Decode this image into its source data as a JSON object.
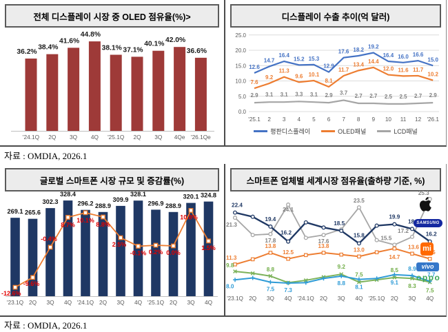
{
  "sources": [
    "자료 : OMDIA,  2026.1",
    "자료 : OMDIA,  2026.1"
  ],
  "logos": {
    "samsung": "SAMSUNG",
    "mi": "mi",
    "vivo": "vivo",
    "oppo": "oppo"
  },
  "chart_data": [
    {
      "type": "bar",
      "title": "전체 디스플레이 시장 중 OLED 점유율(%)>",
      "source": "자료 : OMDIA,  2026.1",
      "categories": [
        "'24.1Q",
        "2Q",
        "3Q",
        "4Q",
        "'25.1Q",
        "2Q",
        "3Q",
        "4Qe",
        "'26.1Qe"
      ],
      "values": [
        36.2,
        38.4,
        41.6,
        44.8,
        38.1,
        37.1,
        40.1,
        42.0,
        36.6
      ],
      "value_labels": [
        "36.2%",
        "38.4%",
        "41.6%",
        "44.8%",
        "38.1%",
        "37.1%",
        "40.1%",
        "42.0%",
        "36.6%"
      ],
      "bar_color": "#9e3a38",
      "ylim": [
        0,
        50
      ],
      "grid": false
    },
    {
      "type": "line",
      "title": "디스플레이 수출 추이(억 달러)",
      "x": [
        "'25.1",
        "2",
        "3",
        "4",
        "5",
        "6",
        "7",
        "8",
        "9",
        "10",
        "11",
        "12",
        "'26.1"
      ],
      "ylim": [
        0,
        25
      ],
      "grid": true,
      "legend_position": "bottom",
      "yticks": [
        {
          "v": 25,
          "t": "25.0"
        },
        {
          "v": 20,
          "t": "20.0"
        },
        {
          "v": 15,
          "t": "15.0"
        },
        {
          "v": 10,
          "t": "10.0"
        },
        {
          "v": 5,
          "t": "5.0"
        },
        {
          "v": 0,
          "t": "0.0"
        }
      ],
      "series": [
        {
          "name": "평판디스플레이",
          "color": "#4472c4",
          "label_dy": 6,
          "values": [
            12.6,
            14.7,
            16.4,
            15.2,
            15.3,
            12.9,
            17.6,
            18.2,
            19.2,
            16.4,
            16.0,
            16.6,
            15.0
          ],
          "labels": [
            "12.6",
            "14.7",
            "16.4",
            "15.2",
            "15.3",
            "12.9",
            "17.6",
            "18.2",
            "19.2",
            "16.4",
            "16.0",
            "16.6",
            "15.0"
          ]
        },
        {
          "name": "OLED패널",
          "color": "#ed7d31",
          "label_dy": 6,
          "values": [
            7.6,
            9.2,
            11.3,
            9.6,
            10.1,
            8.1,
            11.7,
            13.4,
            14.4,
            12.0,
            11.6,
            11.7,
            10.2
          ],
          "labels": [
            "7.6",
            "9.2",
            "11.3",
            "9.6",
            "10.1",
            "8.1",
            "11.7",
            "13.4",
            "14.4",
            "12.0",
            "11.6",
            "11.7",
            "10.2"
          ]
        },
        {
          "name": "LCD패널",
          "color": "#a5a5a5",
          "label_color": "#7f7f7f",
          "label_dy": 8,
          "values": [
            2.9,
            3.1,
            3.1,
            3.3,
            3.1,
            2.9,
            3.7,
            2.7,
            2.7,
            2.5,
            2.5,
            2.7,
            2.9
          ],
          "labels": [
            "2.9",
            "3.1",
            "3.1",
            "3.3",
            "3.1",
            "2.9",
            "3.7",
            "2.7",
            "2.7",
            "2.5",
            "2.5",
            "2.7",
            "2.9"
          ]
        }
      ]
    },
    {
      "type": "bar+line",
      "title": "글로벌 스마트폰 시장 규모 및 증감률(%)",
      "source": "자료 : OMDIA,  2026.1",
      "categories": [
        "'23.1Q",
        "2Q",
        "3Q",
        "4Q",
        "'24.1Q",
        "2Q",
        "3Q",
        "4Q",
        "'25.1Q",
        "2Q",
        "3Q",
        "4Q"
      ],
      "bars": {
        "color": "#1f3864",
        "values": [
          269.1,
          265.6,
          302.3,
          328.4,
          296.2,
          288.9,
          309.9,
          328.1,
          296.9,
          288.9,
          320.1,
          324.8
        ],
        "labels": [
          "269.1",
          "265.6",
          "302.3",
          "328.4",
          "296.2",
          "288.9",
          "309.9",
          "328.1",
          "296.9",
          "288.9",
          "320.1",
          "324.8"
        ]
      },
      "line": {
        "color": "#ed7d31",
        "label_color": "#e00000",
        "values": [
          -12.6,
          -9.6,
          -0.4,
          8.7,
          10.1,
          8.8,
          2.5,
          -0.1,
          0.2,
          0.0,
          10.8,
          1.5
        ],
        "labels": [
          "-12.6%",
          "-9.6%",
          "-0.4%",
          "8.7%",
          "10.1%",
          "8.8%",
          "2.5%",
          "-0.1%",
          "0.2%",
          "0.0%",
          "10.8%",
          "1.5%"
        ],
        "label_layout": [
          [
            -20,
            12,
            "start"
          ],
          [
            -2,
            12,
            "middle"
          ],
          [
            -2,
            -9,
            "middle"
          ],
          [
            0,
            14,
            "middle"
          ],
          [
            0,
            14,
            "middle"
          ],
          [
            0,
            14,
            "middle"
          ],
          [
            -2,
            13,
            "middle"
          ],
          [
            0,
            13,
            "middle"
          ],
          [
            0,
            13,
            "middle"
          ],
          [
            0,
            13,
            "middle"
          ],
          [
            -3,
            13,
            "middle"
          ],
          [
            0,
            13,
            "middle"
          ]
        ]
      }
    },
    {
      "type": "multi-line",
      "title": "스마트폰 업체별 세계시장 점유율(출하량 기준, %)",
      "categories": [
        "'23.1Q",
        "2Q",
        "3Q",
        "4Q",
        "'24.1Q",
        "2Q",
        "3Q",
        "4Q",
        "'25.1Q",
        "2Q",
        "3Q",
        "4Q"
      ],
      "brands": [
        "Apple",
        "SAMSUNG",
        "mi",
        "vivo",
        "oppo"
      ],
      "series": [
        {
          "name": "Apple",
          "color": "#a6a6a6",
          "label_color": "#808080",
          "marker": "circle",
          "width": 1.8,
          "values": [
            21.3,
            17.6,
            17.8,
            24.1,
            17.0,
            17.6,
            18.8,
            23.5,
            16.5,
            15.5,
            17.2,
            25.3
          ],
          "labels": [
            {
              "i": 0,
              "t": "21.3",
              "x": 1,
              "anchor": "start",
              "dy": 13
            },
            {
              "i": 2,
              "t": "17.8",
              "dy": 12
            },
            {
              "i": 3,
              "t": "24.1",
              "dy": 10
            },
            {
              "i": 5,
              "t": "17.6",
              "dy": 12
            },
            {
              "i": 7,
              "t": "23.5",
              "dy": -7
            },
            {
              "i": 9,
              "t": "15.5",
              "dx": -12,
              "dy": -7
            },
            {
              "i": 10,
              "t": "17.2",
              "dx": -13,
              "dy": -6
            },
            {
              "i": 11,
              "t": "25.3",
              "dx": -9,
              "dy": -6
            }
          ]
        },
        {
          "name": "Samsung",
          "color": "#1f3864",
          "marker": "circle",
          "width": 2.4,
          "values": [
            22.4,
            21.5,
            19.4,
            16.2,
            20.3,
            19.2,
            18.5,
            15.8,
            19.6,
            19.9,
            18.9,
            16.2
          ],
          "labels": [
            {
              "i": 0,
              "t": "22.4",
              "dx": 3,
              "dy": -8
            },
            {
              "i": 2,
              "t": "19.4",
              "dy": -8
            },
            {
              "i": 3,
              "t": "16.2",
              "dx": -3,
              "dy": -10
            },
            {
              "i": 6,
              "t": "18.5",
              "dx": -3,
              "dy": -8
            },
            {
              "i": 7,
              "t": "15.8",
              "dy": -9
            },
            {
              "i": 9,
              "t": "19.9",
              "dy": -8
            },
            {
              "i": 10,
              "t": "18.9",
              "dx": 2,
              "dy": -8
            },
            {
              "i": 11,
              "t": "16.2",
              "dx": 2,
              "dy": -8
            }
          ]
        },
        {
          "name": "Mi",
          "color": "#ed7d31",
          "marker": "square",
          "width": 2,
          "values": [
            11.3,
            12.4,
            13.8,
            12.5,
            13.3,
            13.8,
            13.4,
            13.0,
            13.9,
            14.7,
            13.6,
            12.5
          ],
          "labels": [
            {
              "i": 0,
              "t": "11.3",
              "x": 1,
              "anchor": "start",
              "dy": -7
            },
            {
              "i": 2,
              "t": "13.8",
              "dy": -7
            },
            {
              "i": 3,
              "t": "12.5",
              "dy": -7
            },
            {
              "i": 5,
              "t": "13.8",
              "dy": -7
            },
            {
              "i": 7,
              "t": "13.0",
              "dy": -7
            },
            {
              "i": 9,
              "t": "14.7",
              "dy": 15
            },
            {
              "i": 10,
              "t": "13.6",
              "dx": 2,
              "dy": -7
            },
            {
              "i": 11,
              "t": "12.5",
              "dy": -7
            }
          ]
        },
        {
          "name": "oppo",
          "color": "#7cb25a",
          "label_color": "#70ad47",
          "marker": "x",
          "width": 2,
          "values": [
            9.8,
            9.4,
            8.8,
            7.4,
            7.9,
            8.6,
            9.2,
            7.5,
            8.0,
            8.5,
            8.3,
            7.5
          ],
          "labels": [
            {
              "i": 0,
              "t": "9.8",
              "x": 1,
              "anchor": "start",
              "dy": -6
            },
            {
              "i": 2,
              "t": "8.8",
              "dy": -7
            },
            {
              "i": 6,
              "t": "9.2",
              "dy": -8
            },
            {
              "i": 7,
              "t": "7.5",
              "dy": -8
            },
            {
              "i": 9,
              "t": "8.5",
              "dy": -8
            },
            {
              "i": 10,
              "t": "8.3",
              "dy": 14
            },
            {
              "i": 11,
              "t": "7.5",
              "dy": 15
            }
          ]
        },
        {
          "name": "vivo",
          "color": "#2e9bd6",
          "marker": "plus",
          "width": 2,
          "values": [
            8.0,
            8.4,
            7.5,
            7.3,
            7.4,
            8.3,
            8.8,
            8.1,
            8.3,
            9.1,
            8.9,
            7.7
          ],
          "labels": [
            {
              "i": 0,
              "t": "8.0",
              "x": 1,
              "anchor": "start",
              "dy": 12
            },
            {
              "i": 2,
              "t": "7.5",
              "dy": 13
            },
            {
              "i": 3,
              "t": "7.3",
              "dy": 13
            },
            {
              "i": 6,
              "t": "8.8",
              "dy": 13
            },
            {
              "i": 7,
              "t": "8.1",
              "dy": 14
            },
            {
              "i": 9,
              "t": "9.1",
              "dy": 14
            },
            {
              "i": 10,
              "t": "8.9",
              "dy": -7
            },
            {
              "i": 11,
              "t": "7.7",
              "dx": 2,
              "dy": -7
            }
          ]
        }
      ]
    }
  ]
}
